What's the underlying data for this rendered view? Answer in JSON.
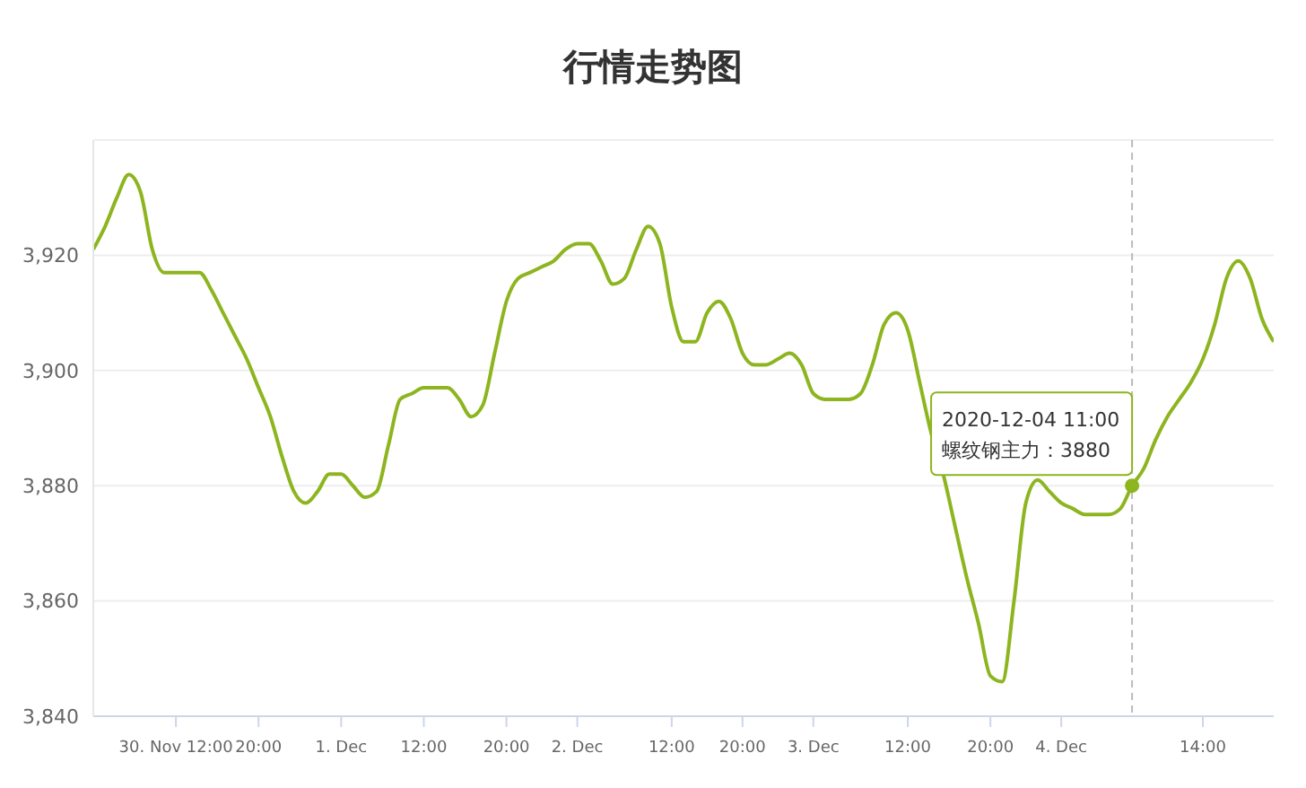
{
  "chart_data": {
    "type": "line",
    "title": "行情走势图",
    "categories": [
      null,
      null,
      null,
      null,
      null,
      null,
      null,
      "30. Nov 12:00",
      null,
      null,
      null,
      null,
      null,
      null,
      "20:00",
      null,
      null,
      null,
      null,
      null,
      null,
      "1. Dec",
      null,
      null,
      null,
      null,
      null,
      null,
      "12:00",
      null,
      null,
      null,
      null,
      null,
      null,
      "20:00",
      null,
      null,
      null,
      null,
      null,
      "2. Dec",
      null,
      null,
      null,
      null,
      null,
      null,
      null,
      "12:00",
      null,
      null,
      null,
      null,
      null,
      "20:00",
      null,
      null,
      null,
      null,
      null,
      "3. Dec",
      null,
      null,
      null,
      null,
      null,
      null,
      null,
      "12:00",
      null,
      null,
      null,
      null,
      null,
      null,
      "20:00",
      null,
      null,
      null,
      null,
      null,
      "4. Dec",
      null,
      null,
      null,
      null,
      null,
      null,
      null,
      null,
      null,
      null,
      null,
      "14:00",
      null,
      null,
      null,
      null,
      null,
      null
    ],
    "series": [
      {
        "color": "#8db51f",
        "values": [
          3921,
          3925,
          3930,
          3934,
          3931,
          3921,
          3917,
          3917,
          3917,
          3917,
          3914,
          3910,
          3906,
          3902,
          3897,
          3892,
          3885,
          3879,
          3877,
          3879,
          3882,
          3882,
          3880,
          3878,
          3879,
          3887,
          3895,
          3896,
          3897,
          3897,
          3897,
          3895,
          3892,
          3894,
          3903,
          3912,
          3916,
          3917,
          3918,
          3919,
          3921,
          3922,
          3922,
          3919,
          3915,
          3916,
          3921,
          3925,
          3922,
          3911,
          3905,
          3905,
          3910,
          3912,
          3909,
          3903,
          3901,
          3901,
          3902,
          3903,
          3901,
          3896,
          3895,
          3895,
          3895,
          3896,
          3901,
          3908,
          3910,
          3907,
          3898,
          3889,
          3882,
          3873,
          3864,
          3856,
          3847,
          3846,
          3860,
          3877,
          3881,
          3879,
          3877,
          3876,
          3875,
          3875,
          3875,
          3876,
          3880,
          3883,
          3888,
          3892,
          3895,
          3898,
          3902,
          3908,
          3916,
          3919,
          3916,
          3909,
          3905
        ]
      }
    ],
    "ylim": [
      3840,
      3940
    ],
    "yticks": [
      {
        "value": 3840,
        "label": "3,840"
      },
      {
        "value": 3860,
        "label": "3,860"
      },
      {
        "value": 3880,
        "label": "3,880"
      },
      {
        "value": 3900,
        "label": "3,900"
      },
      {
        "value": 3920,
        "label": "3,920"
      },
      {
        "value": 3940,
        "label": null
      }
    ],
    "grid": "y",
    "legend": false,
    "marker": "none",
    "line_style": "solid",
    "annotations": [
      {
        "text": "2020-12-04 11:00\n螺纹钢主力：3880",
        "y": 3880
      }
    ]
  }
}
